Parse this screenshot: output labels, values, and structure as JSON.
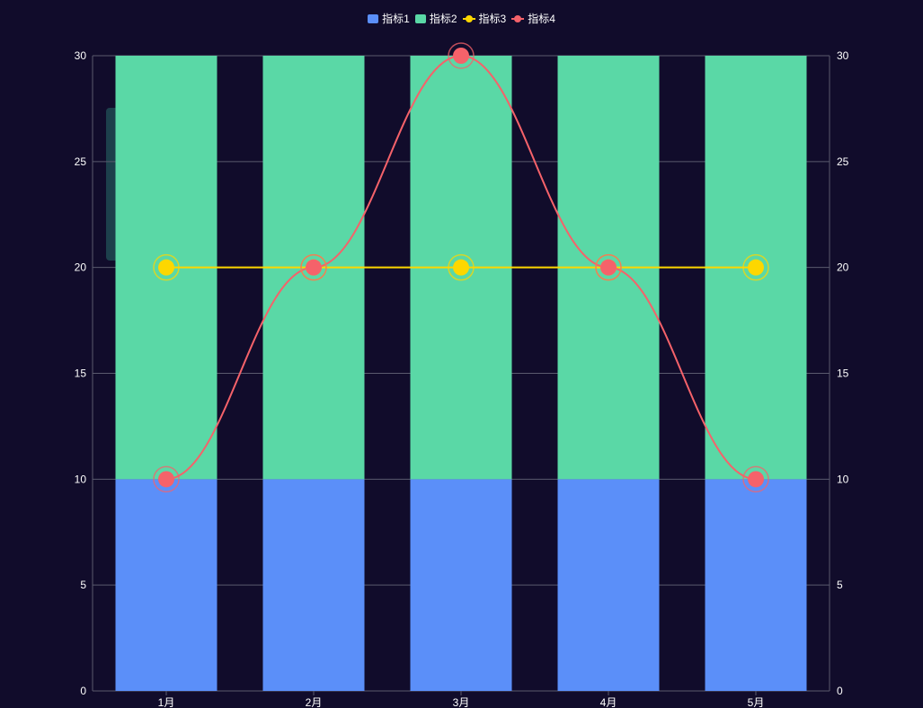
{
  "colors": {
    "background": "#110c2b",
    "series1": "#5b8ff9",
    "series2": "#5ad8a6",
    "series3": "#fdd700",
    "series4": "#f5626a",
    "grid": "#5a5a6e",
    "text": "#ffffff"
  },
  "legend": [
    {
      "name": "指标1",
      "kind": "bar"
    },
    {
      "name": "指标2",
      "kind": "bar"
    },
    {
      "name": "指标3",
      "kind": "line"
    },
    {
      "name": "指标4",
      "kind": "line"
    }
  ],
  "chart_data": {
    "type": "bar",
    "stacked": true,
    "categories": [
      "1月",
      "2月",
      "3月",
      "4月",
      "5月"
    ],
    "series": [
      {
        "name": "指标1",
        "type": "bar",
        "values": [
          10,
          10,
          10,
          10,
          10
        ]
      },
      {
        "name": "指标2",
        "type": "bar",
        "values": [
          20,
          20,
          20,
          20,
          20
        ]
      },
      {
        "name": "指标3",
        "type": "line",
        "values": [
          20,
          20,
          20,
          20,
          20
        ]
      },
      {
        "name": "指标4",
        "type": "line",
        "smooth": true,
        "values": [
          10,
          20,
          30,
          20,
          10
        ]
      }
    ],
    "ylim": [
      0,
      30
    ],
    "yticks": [
      0,
      5,
      10,
      15,
      20,
      25,
      30
    ],
    "y2lim": [
      0,
      30
    ],
    "y2ticks": [
      0,
      5,
      10,
      15,
      20,
      25,
      30
    ],
    "grid": true,
    "legend_position": "top-center"
  }
}
